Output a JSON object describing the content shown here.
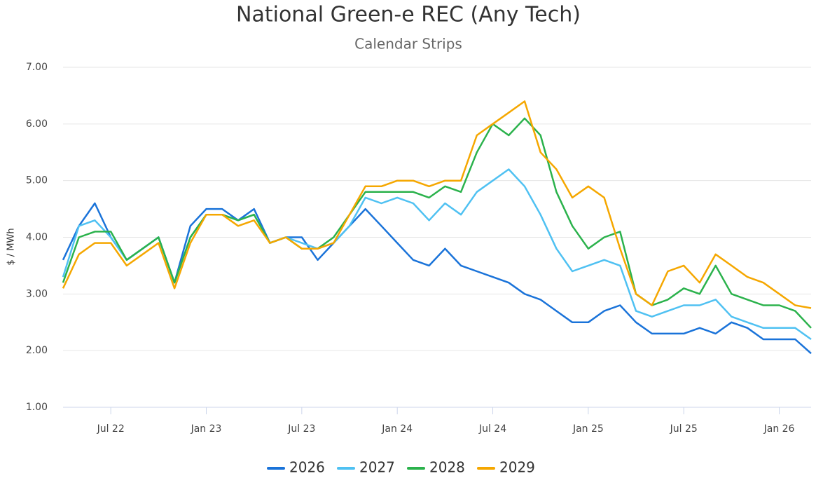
{
  "chart_data": {
    "type": "line",
    "title": "National Green-e REC (Any Tech)",
    "subtitle": "Calendar Strips",
    "y_label": "$ / MWh",
    "x": [
      "2022-04",
      "2022-05",
      "2022-06",
      "2022-07",
      "2022-08",
      "2022-09",
      "2022-10",
      "2022-11",
      "2022-12",
      "2023-01",
      "2023-02",
      "2023-03",
      "2023-04",
      "2023-05",
      "2023-06",
      "2023-07",
      "2023-08",
      "2023-09",
      "2023-10",
      "2023-11",
      "2023-12",
      "2024-01",
      "2024-02",
      "2024-03",
      "2024-04",
      "2024-05",
      "2024-06",
      "2024-07",
      "2024-08",
      "2024-09",
      "2024-10",
      "2024-11",
      "2024-12",
      "2025-01",
      "2025-02",
      "2025-03",
      "2025-04",
      "2025-05",
      "2025-06",
      "2025-07",
      "2025-08",
      "2025-09",
      "2025-10",
      "2025-11",
      "2025-12",
      "2026-01",
      "2026-02",
      "2026-03"
    ],
    "series": [
      {
        "name": "2026",
        "color": "#1a73d9",
        "values": [
          3.6,
          4.2,
          4.6,
          4.0,
          3.6,
          3.8,
          4.0,
          3.2,
          4.2,
          4.5,
          4.5,
          4.3,
          4.5,
          3.9,
          4.0,
          4.0,
          3.6,
          3.9,
          4.2,
          4.5,
          4.2,
          3.9,
          3.6,
          3.5,
          3.8,
          3.5,
          3.4,
          3.3,
          3.2,
          3.0,
          2.9,
          2.7,
          2.5,
          2.5,
          2.7,
          2.8,
          2.5,
          2.3,
          2.3,
          2.3,
          2.4,
          2.3,
          2.5,
          2.4,
          2.2,
          2.2,
          2.2,
          1.95
        ]
      },
      {
        "name": "2027",
        "color": "#4fc1f2",
        "values": [
          3.3,
          4.2,
          4.3,
          4.0,
          3.6,
          3.8,
          4.0,
          3.2,
          4.0,
          4.4,
          4.4,
          4.3,
          4.4,
          3.9,
          4.0,
          3.9,
          3.8,
          3.9,
          4.2,
          4.7,
          4.6,
          4.7,
          4.6,
          4.3,
          4.6,
          4.4,
          4.8,
          5.0,
          5.2,
          4.9,
          4.4,
          3.8,
          3.4,
          3.5,
          3.6,
          3.5,
          2.7,
          2.6,
          2.7,
          2.8,
          2.8,
          2.9,
          2.6,
          2.5,
          2.4,
          2.4,
          2.4,
          2.2
        ]
      },
      {
        "name": "2028",
        "color": "#2bb24c",
        "values": [
          3.2,
          4.0,
          4.1,
          4.1,
          3.6,
          3.8,
          4.0,
          3.2,
          4.0,
          4.4,
          4.4,
          4.3,
          4.4,
          3.9,
          4.0,
          3.8,
          3.8,
          4.0,
          4.4,
          4.8,
          4.8,
          4.8,
          4.8,
          4.7,
          4.9,
          4.8,
          5.5,
          6.0,
          5.8,
          6.1,
          5.8,
          4.8,
          4.2,
          3.8,
          4.0,
          4.1,
          3.0,
          2.8,
          2.9,
          3.1,
          3.0,
          3.5,
          3.0,
          2.9,
          2.8,
          2.8,
          2.7,
          2.4
        ]
      },
      {
        "name": "2029",
        "color": "#f5a700",
        "values": [
          3.1,
          3.7,
          3.9,
          3.9,
          3.5,
          3.7,
          3.9,
          3.1,
          3.9,
          4.4,
          4.4,
          4.2,
          4.3,
          3.9,
          4.0,
          3.8,
          3.8,
          3.9,
          4.4,
          4.9,
          4.9,
          5.0,
          5.0,
          4.9,
          5.0,
          5.0,
          5.8,
          6.0,
          6.2,
          6.4,
          5.5,
          5.2,
          4.7,
          4.9,
          4.7,
          3.8,
          3.0,
          2.8,
          3.4,
          3.5,
          3.2,
          3.7,
          3.5,
          3.3,
          3.2,
          3.0,
          2.8,
          2.75
        ]
      }
    ],
    "xlim": [
      "2022-04",
      "2026-03"
    ],
    "xticks": [
      {
        "value": "2022-07",
        "label": "Jul 22"
      },
      {
        "value": "2023-01",
        "label": "Jan 23"
      },
      {
        "value": "2023-07",
        "label": "Jul 23"
      },
      {
        "value": "2024-01",
        "label": "Jan 24"
      },
      {
        "value": "2024-07",
        "label": "Jul 24"
      },
      {
        "value": "2025-01",
        "label": "Jan 25"
      },
      {
        "value": "2025-07",
        "label": "Jul 25"
      },
      {
        "value": "2026-01",
        "label": "Jan 26"
      }
    ],
    "ylim": [
      1,
      7
    ],
    "yticks": [
      {
        "value": 1,
        "label": "1.00"
      },
      {
        "value": 2,
        "label": "2.00"
      },
      {
        "value": 3,
        "label": "3.00"
      },
      {
        "value": 4,
        "label": "4.00"
      },
      {
        "value": 5,
        "label": "5.00"
      },
      {
        "value": 6,
        "label": "6.00"
      },
      {
        "value": 7,
        "label": "7.00"
      }
    ],
    "grid": true,
    "legend": "bottom"
  }
}
